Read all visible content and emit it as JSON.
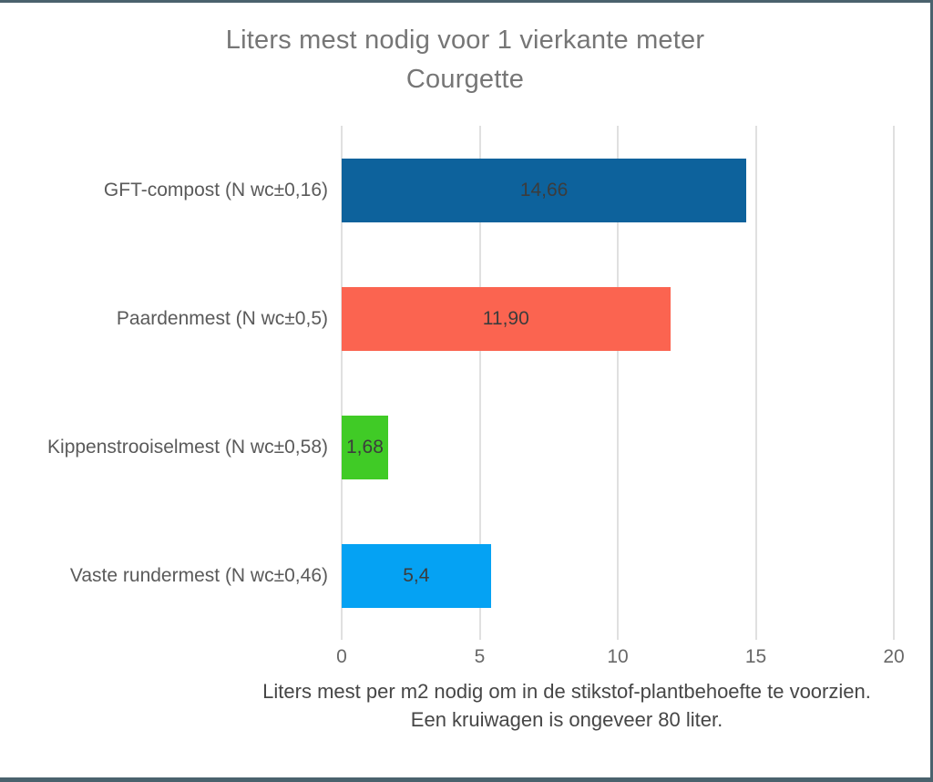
{
  "chart_data": {
    "type": "bar",
    "orientation": "horizontal",
    "title_line1": "Liters mest nodig voor 1 vierkante meter",
    "title_line2": "Courgette",
    "categories": [
      "GFT-compost (N wc±0,16)",
      "Paardenmest (N wc±0,5)",
      "Kippenstrooiselmest (N wc±0,58)",
      "Vaste rundermest (N wc±0,46)"
    ],
    "values": [
      14.66,
      11.9,
      1.68,
      5.4
    ],
    "value_labels": [
      "14,66",
      "11,90",
      "1,68",
      "5,4"
    ],
    "bar_colors": [
      "#0d629c",
      "#fb6450",
      "#40cb26",
      "#05a2f3"
    ],
    "xlim": [
      0,
      20
    ],
    "x_ticks": [
      0,
      5,
      10,
      15,
      20
    ],
    "x_tick_labels": [
      "0",
      "5",
      "10",
      "15",
      "20"
    ],
    "xlabel_line1": "Liters mest per m2 nodig om in de stikstof-plantbehoefte te voorzien.",
    "xlabel_line2": "Een kruiwagen is ongeveer 80 liter.",
    "grid": "vertical-only",
    "legend": "none"
  },
  "colors": {
    "frame_border": "#4a626d",
    "gridline": "#e0e0e0",
    "title_text": "#767676",
    "category_text": "#5a5a5a",
    "tick_text": "#686868",
    "value_text": "#3c3c3c",
    "axis_label_text": "#464646",
    "background": "#ffffff"
  }
}
